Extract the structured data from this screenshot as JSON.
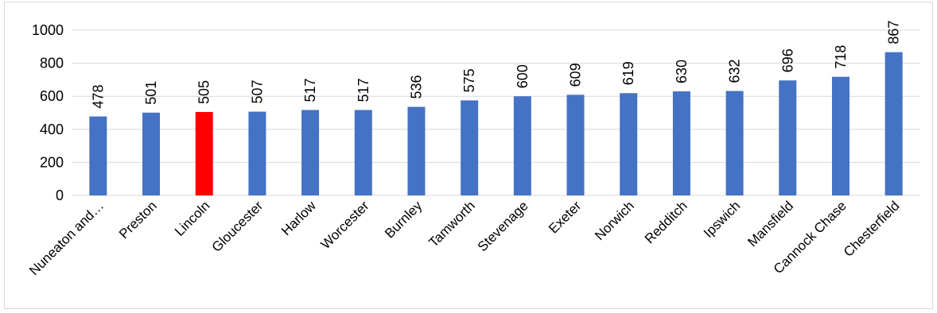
{
  "chart_data": {
    "type": "bar",
    "title": "",
    "xlabel": "",
    "ylabel": "",
    "categories": [
      "Nuneaton and…",
      "Preston",
      "Lincoln",
      "Gloucester",
      "Harlow",
      "Worcester",
      "Burnley",
      "Tamworth",
      "Stevenage",
      "Exeter",
      "Norwich",
      "Redditch",
      "Ipswich",
      "Mansfield",
      "Cannock Chase",
      "Chesterfield"
    ],
    "values": [
      478,
      501,
      505,
      507,
      517,
      517,
      536,
      575,
      600,
      609,
      619,
      630,
      632,
      696,
      718,
      867
    ],
    "data_labels": [
      "478",
      "501",
      "505",
      "507",
      "517",
      "517",
      "536",
      "575",
      "600",
      "609",
      "619",
      "630",
      "632",
      "696",
      "718",
      "867"
    ],
    "ylim": [
      0,
      1000
    ],
    "yticks": [
      0,
      200,
      400,
      600,
      800,
      1000
    ],
    "ytick_labels": [
      "0",
      "200",
      "400",
      "600",
      "800",
      "1000"
    ],
    "grid": true,
    "legend": "none",
    "colors": {
      "default_bar": "#4472c4",
      "highlight_bar": "#ff0000",
      "gridline": "#d9d9d9"
    },
    "highlight_category": "Lincoln"
  }
}
